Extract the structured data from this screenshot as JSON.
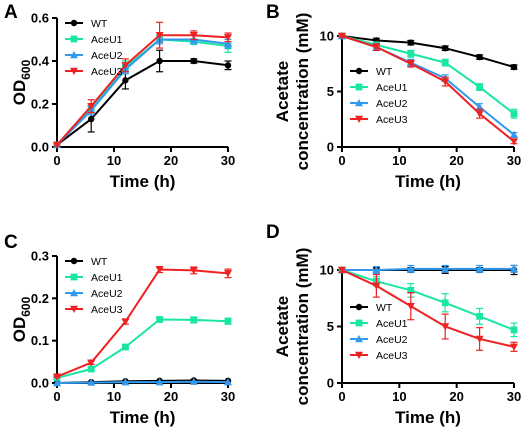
{
  "chart_data": [
    {
      "panel": "A",
      "type": "line",
      "xlabel": "Time (h)",
      "ylabel": "OD",
      "ylabel_sub": "600",
      "xlim": [
        0,
        30
      ],
      "ylim": [
        0,
        0.6
      ],
      "x_ticks": [
        0,
        10,
        20,
        30
      ],
      "y_ticks": [
        0.0,
        0.2,
        0.4,
        0.6
      ],
      "y_tick_labels": [
        "0.0",
        "0.2",
        "0.4",
        "0.6"
      ],
      "legend_position": "top-left",
      "x": [
        0,
        6,
        12,
        18,
        24,
        30
      ],
      "series": [
        {
          "name": "WT",
          "color": "#000000",
          "marker": "circle",
          "values": [
            0.01,
            0.13,
            0.31,
            0.4,
            0.4,
            0.38
          ],
          "errors": [
            0.005,
            0.06,
            0.04,
            0.05,
            0.01,
            0.02
          ]
        },
        {
          "name": "AceU1",
          "color": "#19e6a5",
          "marker": "square",
          "values": [
            0.01,
            0.18,
            0.37,
            0.5,
            0.49,
            0.47
          ],
          "errors": [
            0.005,
            0.02,
            0.03,
            0.01,
            0.01,
            0.03
          ]
        },
        {
          "name": "AceU2",
          "color": "#3399ee",
          "marker": "triangle-up",
          "values": [
            0.01,
            0.17,
            0.36,
            0.5,
            0.5,
            0.48
          ],
          "errors": [
            0.005,
            0.02,
            0.02,
            0.02,
            0.02,
            0.02
          ]
        },
        {
          "name": "AceU3",
          "color": "#ee2222",
          "marker": "triangle-down",
          "values": [
            0.01,
            0.19,
            0.38,
            0.52,
            0.52,
            0.51
          ],
          "errors": [
            0.005,
            0.03,
            0.03,
            0.06,
            0.02,
            0.02
          ]
        }
      ]
    },
    {
      "panel": "B",
      "type": "line",
      "xlabel": "Time (h)",
      "ylabel_lines": [
        "Acetate",
        "concentration (mM)"
      ],
      "xlim": [
        0,
        30
      ],
      "ylim": [
        0,
        10
      ],
      "x_ticks": [
        0,
        10,
        20,
        30
      ],
      "y_ticks": [
        0,
        5,
        10
      ],
      "y_tick_labels": [
        "0",
        "5",
        "10"
      ],
      "legend_position": "bottom-left",
      "x": [
        0,
        6,
        12,
        18,
        24,
        30
      ],
      "series": [
        {
          "name": "WT",
          "color": "#000000",
          "marker": "circle",
          "values": [
            10.0,
            9.6,
            9.4,
            8.9,
            8.1,
            7.2
          ],
          "errors": [
            0.1,
            0.2,
            0.2,
            0.2,
            0.2,
            0.2
          ]
        },
        {
          "name": "AceU1",
          "color": "#19e6a5",
          "marker": "square",
          "values": [
            10.0,
            9.2,
            8.4,
            7.6,
            5.4,
            3.0
          ],
          "errors": [
            0.1,
            0.2,
            0.3,
            0.3,
            0.3,
            0.4
          ]
        },
        {
          "name": "AceU2",
          "color": "#3399ee",
          "marker": "triangle-up",
          "values": [
            10.0,
            9.0,
            7.6,
            6.2,
            3.6,
            1.1
          ],
          "errors": [
            0.1,
            0.3,
            0.3,
            0.3,
            0.3,
            0.2
          ]
        },
        {
          "name": "AceU3",
          "color": "#ee2222",
          "marker": "triangle-down",
          "values": [
            10.0,
            9.0,
            7.5,
            5.9,
            3.0,
            0.5
          ],
          "errors": [
            0.1,
            0.3,
            0.3,
            0.4,
            0.4,
            0.2
          ]
        }
      ]
    },
    {
      "panel": "C",
      "type": "line",
      "xlabel": "Time (h)",
      "ylabel": "OD",
      "ylabel_sub": "600",
      "xlim": [
        0,
        30
      ],
      "ylim": [
        0,
        0.3
      ],
      "x_ticks": [
        0,
        10,
        20,
        30
      ],
      "y_ticks": [
        0.0,
        0.1,
        0.2,
        0.3
      ],
      "y_tick_labels": [
        "0.0",
        "0.1",
        "0.2",
        "0.3"
      ],
      "legend_position": "top-left",
      "x": [
        0,
        6,
        12,
        18,
        24,
        30
      ],
      "series": [
        {
          "name": "WT",
          "color": "#000000",
          "marker": "circle",
          "values": [
            0.0,
            0.002,
            0.004,
            0.005,
            0.006,
            0.005
          ],
          "errors": [
            0.001,
            0.001,
            0.001,
            0.001,
            0.002,
            0.001
          ]
        },
        {
          "name": "AceU1",
          "color": "#19e6a5",
          "marker": "square",
          "values": [
            0.012,
            0.033,
            0.085,
            0.15,
            0.149,
            0.146
          ],
          "errors": [
            0.002,
            0.003,
            0.004,
            0.005,
            0.007,
            0.007
          ]
        },
        {
          "name": "AceU2",
          "color": "#3399ee",
          "marker": "triangle-up",
          "values": [
            0.0,
            0.001,
            0.002,
            0.002,
            0.003,
            0.002
          ],
          "errors": [
            0.001,
            0.001,
            0.001,
            0.001,
            0.001,
            0.001
          ]
        },
        {
          "name": "AceU3",
          "color": "#ee2222",
          "marker": "triangle-down",
          "values": [
            0.015,
            0.048,
            0.145,
            0.268,
            0.266,
            0.259
          ],
          "errors": [
            0.002,
            0.004,
            0.006,
            0.007,
            0.008,
            0.01
          ]
        }
      ]
    },
    {
      "panel": "D",
      "type": "line",
      "xlabel": "Time (h)",
      "ylabel_lines": [
        "Acetate",
        "concentration (mM)"
      ],
      "xlim": [
        0,
        30
      ],
      "ylim": [
        0,
        10
      ],
      "x_ticks": [
        0,
        10,
        20,
        30
      ],
      "y_ticks": [
        0,
        5,
        10
      ],
      "y_tick_labels": [
        "0",
        "5",
        "10"
      ],
      "legend_position": "bottom-left",
      "x": [
        0,
        6,
        12,
        18,
        24,
        30
      ],
      "series": [
        {
          "name": "WT",
          "color": "#000000",
          "marker": "circle",
          "values": [
            10.0,
            10.0,
            10.0,
            10.0,
            10.0,
            10.0
          ],
          "errors": [
            0.2,
            0.2,
            0.2,
            0.3,
            0.2,
            0.4
          ]
        },
        {
          "name": "AceU1",
          "color": "#19e6a5",
          "marker": "square",
          "values": [
            10.0,
            9.0,
            8.2,
            7.1,
            5.9,
            4.7
          ],
          "errors": [
            0.2,
            0.4,
            0.6,
            0.8,
            0.7,
            0.6
          ]
        },
        {
          "name": "AceU2",
          "color": "#3399ee",
          "marker": "triangle-up",
          "values": [
            10.0,
            10.0,
            10.1,
            10.1,
            10.1,
            10.1
          ],
          "errors": [
            0.2,
            0.3,
            0.3,
            0.3,
            0.3,
            0.3
          ]
        },
        {
          "name": "AceU3",
          "color": "#ee2222",
          "marker": "triangle-down",
          "values": [
            10.0,
            8.6,
            6.8,
            5.0,
            3.9,
            3.2
          ],
          "errors": [
            0.2,
            1.0,
            1.2,
            1.1,
            1.0,
            0.4
          ]
        }
      ]
    }
  ]
}
